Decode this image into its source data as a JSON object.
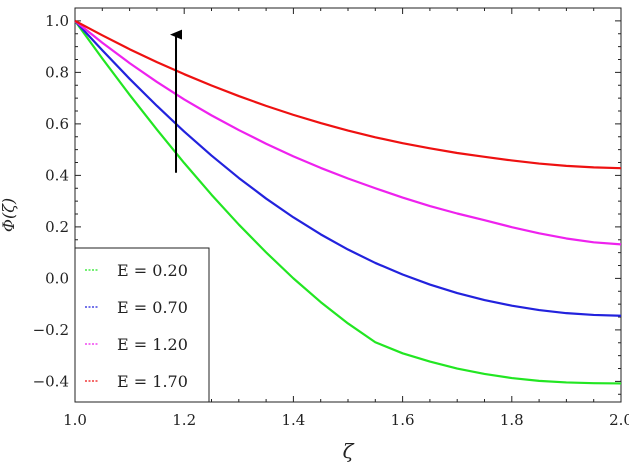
{
  "chart_data": {
    "type": "line",
    "title": "",
    "xlabel": "ζ",
    "ylabel": "Φ(ζ)",
    "xlim": [
      1.0,
      2.0
    ],
    "ylim": [
      -0.48,
      1.05
    ],
    "xticks": [
      1.0,
      1.2,
      1.4,
      1.6,
      1.8,
      2.0
    ],
    "xtick_labels": [
      "1.0",
      "1.2",
      "1.4",
      "1.6",
      "1.8",
      "2.0"
    ],
    "yticks": [
      -0.4,
      -0.2,
      0.0,
      0.2,
      0.4,
      0.6,
      0.8,
      1.0
    ],
    "ytick_labels": [
      "−0.4",
      "−0.2",
      "0.0",
      "0.2",
      "0.4",
      "0.6",
      "0.8",
      "1.0"
    ],
    "grid": false,
    "legend_position": "bottom-left",
    "x": [
      1.0,
      1.05,
      1.1,
      1.15,
      1.2,
      1.25,
      1.3,
      1.35,
      1.4,
      1.45,
      1.5,
      1.55,
      1.6,
      1.65,
      1.7,
      1.75,
      1.8,
      1.85,
      1.9,
      1.95,
      2.0
    ],
    "series": [
      {
        "name": "E = 0.20",
        "color": "#22e622",
        "values": [
          1.0,
          0.854,
          0.713,
          0.578,
          0.448,
          0.325,
          0.209,
          0.101,
          0.0,
          -0.092,
          -0.175,
          -0.248,
          -0.291,
          -0.323,
          -0.35,
          -0.371,
          -0.387,
          -0.398,
          -0.404,
          -0.407,
          -0.408
        ]
      },
      {
        "name": "E = 0.70",
        "color": "#2222dd",
        "values": [
          1.0,
          0.886,
          0.775,
          0.67,
          0.57,
          0.477,
          0.39,
          0.31,
          0.237,
          0.171,
          0.112,
          0.06,
          0.015,
          -0.024,
          -0.057,
          -0.084,
          -0.106,
          -0.123,
          -0.135,
          -0.142,
          -0.145
        ]
      },
      {
        "name": "E = 1.20",
        "color": "#ee22ee",
        "values": [
          1.0,
          0.915,
          0.836,
          0.763,
          0.695,
          0.633,
          0.576,
          0.523,
          0.474,
          0.429,
          0.388,
          0.35,
          0.314,
          0.281,
          0.252,
          0.226,
          0.199,
          0.175,
          0.155,
          0.14,
          0.132
        ]
      },
      {
        "name": "E = 1.70",
        "color": "#ee1111",
        "values": [
          1.0,
          0.944,
          0.89,
          0.84,
          0.793,
          0.749,
          0.708,
          0.67,
          0.635,
          0.603,
          0.574,
          0.548,
          0.525,
          0.505,
          0.487,
          0.472,
          0.458,
          0.446,
          0.437,
          0.431,
          0.428
        ]
      }
    ],
    "annotations": [
      {
        "type": "arrow",
        "x": 1.185,
        "y_from": 0.41,
        "y_to": 0.97,
        "color": "#000000"
      }
    ]
  }
}
